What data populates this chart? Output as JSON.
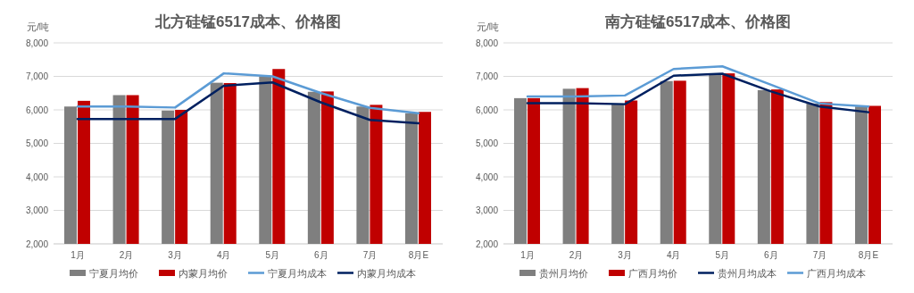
{
  "chart_data": [
    {
      "type": "bar",
      "title": "北方硅锰6517成本、价格图",
      "ylabel": "元/吨",
      "categories": [
        "1月",
        "2月",
        "3月",
        "4月",
        "5月",
        "6月",
        "7月",
        "8月E"
      ],
      "ylim": [
        2000,
        8000
      ],
      "yticks": [
        {
          "value": 2000,
          "label": "2,000"
        },
        {
          "value": 3000,
          "label": "3,000"
        },
        {
          "value": 4000,
          "label": "4,000"
        },
        {
          "value": 5000,
          "label": "5,000"
        },
        {
          "value": 6000,
          "label": "6,000"
        },
        {
          "value": 7000,
          "label": "7,000"
        },
        {
          "value": 8000,
          "label": "8,000"
        }
      ],
      "grid": "y",
      "legend": "bottom",
      "series": [
        {
          "name": "宁夏月均价",
          "color": "#7f7f7f",
          "values": [
            6100,
            6440,
            5980,
            6810,
            7000,
            6540,
            6100,
            5900
          ]
        },
        {
          "name": "内蒙月均价",
          "color": "#c00000",
          "values": [
            6270,
            6440,
            6000,
            6800,
            7220,
            6550,
            6150,
            5940
          ]
        },
        {
          "name": "宁夏月均成本",
          "type": "line",
          "color": "#5b9bd5",
          "values": [
            6100,
            6100,
            6070,
            7090,
            7000,
            6500,
            6060,
            5900
          ]
        },
        {
          "name": "内蒙月均成本",
          "type": "line",
          "color": "#002060",
          "values": [
            5730,
            5730,
            5730,
            6720,
            6820,
            6220,
            5700,
            5600
          ]
        }
      ]
    },
    {
      "type": "bar",
      "title": "南方硅锰6517成本、价格图",
      "ylabel": "元/吨",
      "categories": [
        "1月",
        "2月",
        "3月",
        "4月",
        "5月",
        "6月",
        "7月",
        "8月E"
      ],
      "ylim": [
        2000,
        8000
      ],
      "yticks": [
        {
          "value": 2000,
          "label": "2,000"
        },
        {
          "value": 3000,
          "label": "3,000"
        },
        {
          "value": 4000,
          "label": "4,000"
        },
        {
          "value": 5000,
          "label": "5,000"
        },
        {
          "value": 6000,
          "label": "6,000"
        },
        {
          "value": 7000,
          "label": "7,000"
        },
        {
          "value": 8000,
          "label": "8,000"
        }
      ],
      "grid": "y",
      "legend": "bottom",
      "series": [
        {
          "name": "贵州月均价",
          "color": "#7f7f7f",
          "values": [
            6350,
            6630,
            6190,
            6860,
            7080,
            6590,
            6190,
            6100
          ]
        },
        {
          "name": "广西月均价",
          "color": "#c00000",
          "values": [
            6350,
            6650,
            6280,
            6870,
            7090,
            6610,
            6230,
            6120
          ]
        },
        {
          "name": "贵州月均成本",
          "type": "line",
          "color": "#002060",
          "values": [
            6200,
            6200,
            6170,
            7020,
            7080,
            6550,
            6100,
            5930
          ]
        },
        {
          "name": "广西月均成本",
          "type": "line",
          "color": "#5b9bd5",
          "values": [
            6400,
            6400,
            6430,
            7220,
            7300,
            6750,
            6190,
            6100
          ]
        }
      ]
    }
  ]
}
